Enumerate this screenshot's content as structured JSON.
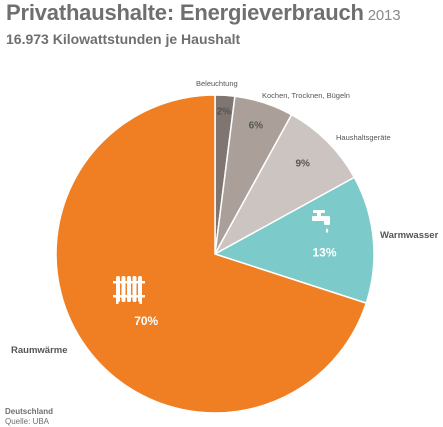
{
  "header": {
    "title": "Privathaushalte: Energieverbrauch",
    "year": "2013",
    "subtitle": "16.973 Kilowattstunden je Haushalt"
  },
  "footer": {
    "region": "Deutschland",
    "source": "Quelle: UBA"
  },
  "chart_data": {
    "type": "pie",
    "title": "Privathaushalte: Energieverbrauch",
    "subtitle": "16.973 Kilowattstunden je Haushalt",
    "start": "12 o'clock",
    "direction": "clockwise",
    "slices": [
      {
        "label": "Beleuchtung",
        "value": 2,
        "value_label": "2%",
        "color": "#7f7571"
      },
      {
        "label": "Kochen, Trocknen, Bügeln",
        "value": 6,
        "value_label": "6%",
        "color": "#ab9f9a"
      },
      {
        "label": "Haushaltsgeräte",
        "value": 9,
        "value_label": "9%",
        "color": "#ccc4c0"
      },
      {
        "label": "Warmwasser",
        "value": 13,
        "value_label": "13%",
        "color": "#7ccac9",
        "icon": "water-tap-icon"
      },
      {
        "label": "Raumwärme",
        "value": 70,
        "value_label": "70%",
        "color": "#f07f24",
        "icon": "radiator-icon"
      }
    ]
  }
}
